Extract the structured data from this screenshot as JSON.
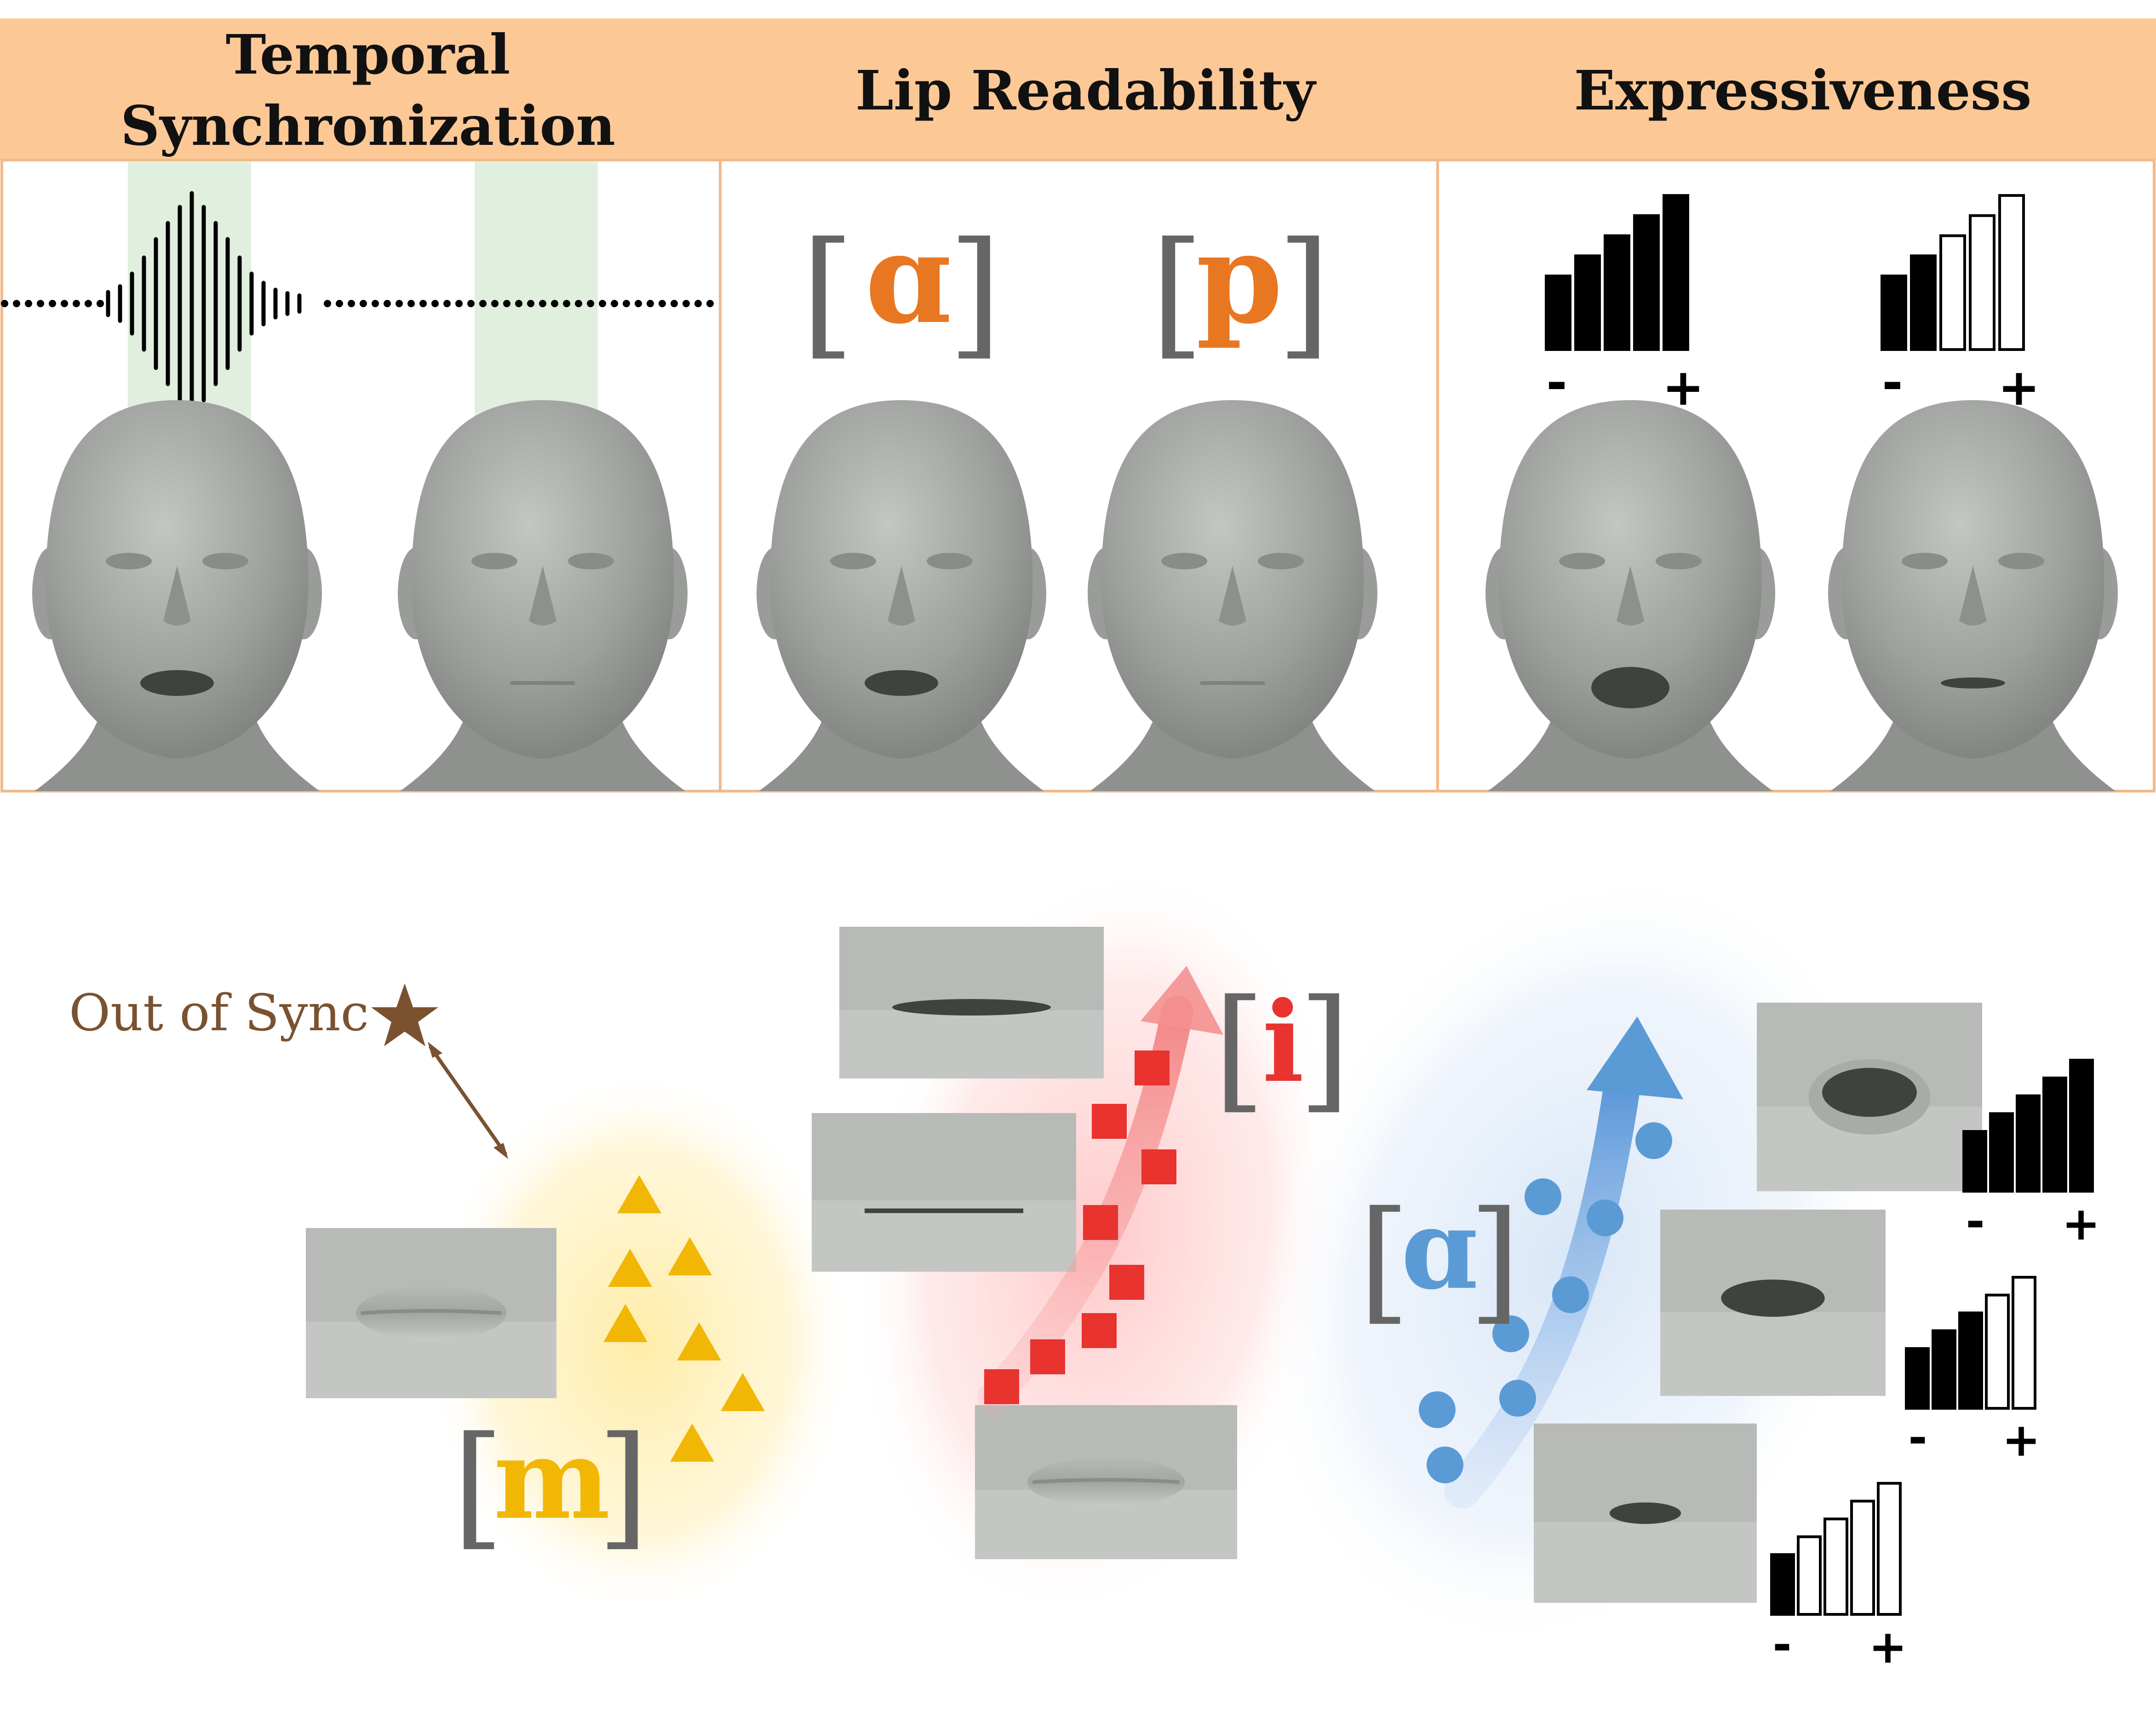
{
  "header": {
    "sections": [
      {
        "line1": "Temporal",
        "line2": "Synchronization"
      },
      {
        "label": "Lip Readability"
      },
      {
        "label": "Expressiveness"
      }
    ],
    "background_color": "#fcc896"
  },
  "lip_readability": {
    "phoneme_left": "ɑ",
    "phoneme_right": "p",
    "phoneme_color": "#e87722"
  },
  "expressiveness": {
    "left_level": 1.0,
    "right_level": 0.4,
    "minus": "-",
    "plus": "+"
  },
  "clusters": {
    "out_of_sync": "Out of Sync",
    "star_color": "#7a5230",
    "m": {
      "label": "m",
      "color": "#f2b705"
    },
    "i": {
      "label": "i",
      "color": "#e8332f"
    },
    "a": {
      "label": "ɑ",
      "color": "#5b9bd5"
    }
  },
  "mouth_intensity_levels": [
    1.0,
    0.6,
    0.2
  ],
  "sign_minus": "-",
  "sign_plus": "+"
}
